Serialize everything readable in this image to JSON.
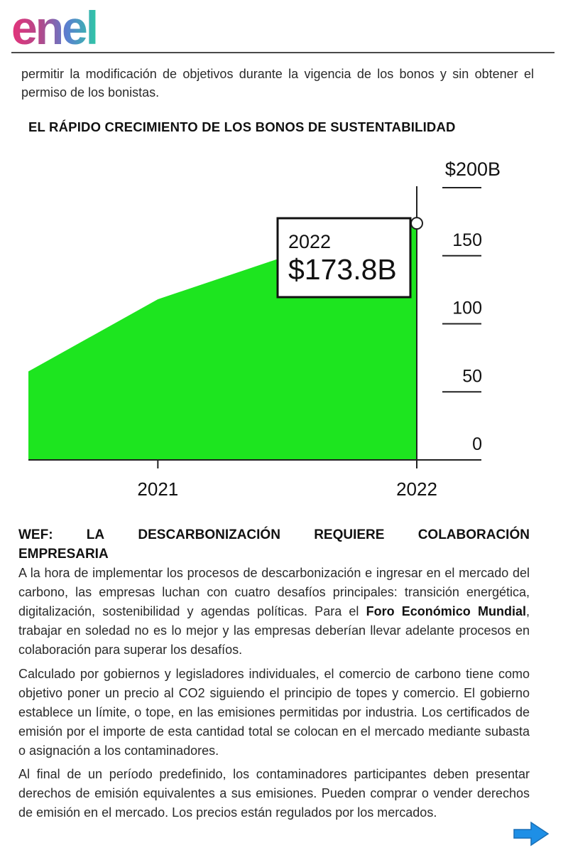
{
  "header": {
    "logo_text": "enel"
  },
  "intro_text": "permitir la modificación de objetivos durante la vigencia de los bonos y sin obtener el permiso de los bonistas.",
  "chart_data": {
    "type": "area",
    "title": "EL RÁPIDO CRECIMIENTO DE LOS BONOS DE SUSTENTABILIDAD",
    "x_ticks": [
      "2021",
      "2022"
    ],
    "y_ticks": [
      "$200B",
      "150",
      "100",
      "50",
      "0"
    ],
    "y_tick_values": [
      200,
      150,
      100,
      50,
      0
    ],
    "ylim": [
      0,
      200
    ],
    "series": [
      {
        "x": [
          2020.5,
          2021.0,
          2021.5,
          2022.0
        ],
        "values": [
          65,
          118,
          150,
          173.8
        ]
      }
    ],
    "annotation": {
      "label_year": "2022",
      "label_value": "$173.8B"
    },
    "fill_color": "#1de51f"
  },
  "section": {
    "heading_line1_words": [
      "WEF:",
      "LA",
      "DESCARBONIZACIÓN",
      "REQUIERE",
      "COLABORACIÓN"
    ],
    "heading_line2": "EMPRESARIA",
    "p1_before": "A la hora de implementar los procesos de descarbonización e ingresar en el mercado del carbono, las empresas luchan con cuatro desafíos principales: transición energética, digitalización, sostenibilidad y agendas políticas. Para el ",
    "p1_bold": "Foro Económico Mundial",
    "p1_after": ", trabajar en soledad no es lo mejor y las empresas deberían llevar adelante procesos en colaboración para superar los desafíos.",
    "p2": "Calculado por gobiernos y legisladores individuales, el comercio de carbono tiene como objetivo poner un precio al CO2 siguiendo el principio de topes y comercio. El gobierno establece un límite, o tope, en las emisiones permitidas por industria. Los certificados de emisión por el importe de esta cantidad total se colocan en el mercado mediante subasta o asignación a los contaminadores.",
    "p3": "Al final de un período predefinido, los contaminadores participantes deben presentar derechos de emisión equivalentes a sus emisiones. Pueden comprar o vender derechos de emisión en el mercado. Los precios están regulados por los mercados."
  },
  "nav": {
    "next_icon": "arrow-right-icon",
    "arrow_color": "#1e8fe6"
  }
}
